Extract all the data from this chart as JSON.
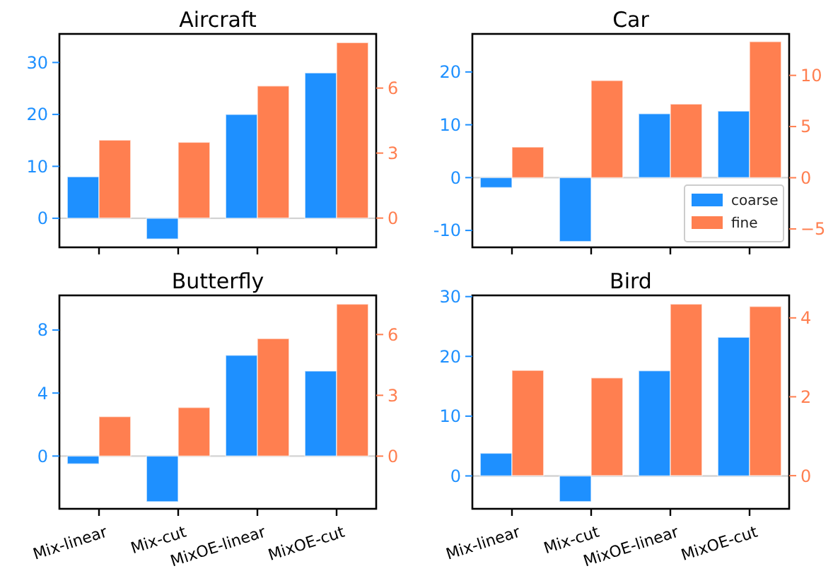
{
  "chart_data": [
    {
      "type": "bar",
      "title": "Aircraft",
      "categories": [
        null,
        null,
        null,
        null
      ],
      "series": [
        {
          "color": "#1e90ff",
          "values": [
            8,
            -4,
            20,
            28
          ]
        },
        {
          "color": "#ff7f50",
          "axis": "y2",
          "values": [
            3.6,
            3.5,
            6.1,
            8.1
          ]
        }
      ],
      "ylim": [
        -5.6,
        35.5
      ],
      "yticks": [
        0,
        10,
        20,
        30
      ],
      "y2lim": [
        -1.35,
        8.5
      ],
      "y2ticks": [
        0,
        3,
        6
      ],
      "ref_lines": [
        {
          "axis": "y",
          "value": 0,
          "color": "#d3d3d3"
        }
      ]
    },
    {
      "type": "bar",
      "title": "Car",
      "categories": [
        null,
        null,
        null,
        null
      ],
      "series": [
        {
          "name": "coarse",
          "color": "#1e90ff",
          "values": [
            -1.9,
            -12.1,
            12.1,
            12.6
          ]
        },
        {
          "name": "fine",
          "color": "#ff7f50",
          "axis": "y2",
          "values": [
            3,
            9.5,
            7.2,
            13.3
          ]
        }
      ],
      "ylim": [
        -13.2,
        27.2
      ],
      "yticks": [
        -10,
        0,
        10,
        20
      ],
      "y2lim": [
        -6.8,
        14.05
      ],
      "y2ticks": [
        {
          "value": -5,
          "label": "−5"
        },
        0,
        5,
        10
      ],
      "ref_lines": [
        {
          "axis": "y",
          "value": 0,
          "color": "#d3d3d3"
        }
      ],
      "legend": "bottom right"
    },
    {
      "type": "bar",
      "title": "Butterfly",
      "categories": [
        "Mix-linear",
        "Mix-cut",
        "MixOE-linear",
        "MixOE-cut"
      ],
      "series": [
        {
          "color": "#1e90ff",
          "values": [
            -0.5,
            -2.9,
            6.4,
            5.4
          ]
        },
        {
          "color": "#ff7f50",
          "axis": "y2",
          "values": [
            1.95,
            2.4,
            5.8,
            7.5
          ]
        }
      ],
      "ylim": [
        -3.35,
        10.2
      ],
      "yticks": [
        0,
        4,
        8
      ],
      "y2lim": [
        -2.6,
        7.93
      ],
      "y2ticks": [
        0,
        3,
        6
      ],
      "ref_lines": [
        {
          "axis": "y",
          "value": 0,
          "color": "#d3d3d3"
        }
      ]
    },
    {
      "type": "bar",
      "title": "Bird",
      "categories": [
        "Mix-linear",
        "Mix-cut",
        "MixOE-linear",
        "MixOE-cut"
      ],
      "series": [
        {
          "color": "#1e90ff",
          "values": [
            3.8,
            -4.3,
            17.6,
            23.2
          ]
        },
        {
          "color": "#ff7f50",
          "axis": "y2",
          "values": [
            2.67,
            2.48,
            4.35,
            4.29
          ]
        }
      ],
      "ylim": [
        -5.5,
        30.2
      ],
      "yticks": [
        0,
        10,
        20,
        30
      ],
      "y2lim": [
        -0.84,
        4.57
      ],
      "y2ticks": [
        0,
        2,
        4
      ],
      "ref_lines": [
        {
          "axis": "y",
          "value": 0,
          "color": "#d3d3d3"
        }
      ]
    }
  ]
}
